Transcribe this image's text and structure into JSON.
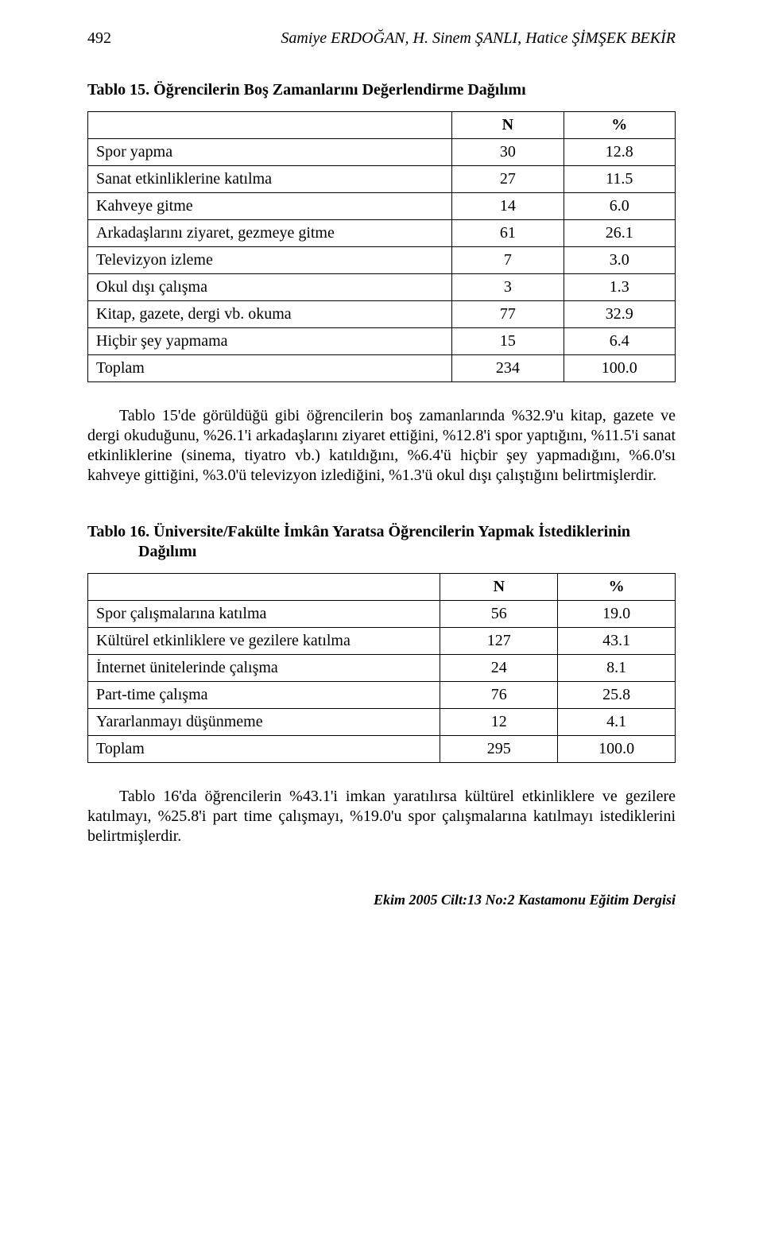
{
  "header": {
    "page_number": "492",
    "running_head": "Samiye ERDOĞAN, H. Sinem ŞANLI, Hatice ŞİMŞEK BEKİR"
  },
  "table15": {
    "caption": "Tablo 15. Öğrencilerin Boş Zamanlarını Değerlendirme Dağılımı",
    "col_headers": [
      "N",
      "%"
    ],
    "col_widths_pct": [
      62,
      19,
      19
    ],
    "border_color": "#000000",
    "font_family": "Times New Roman",
    "rows": [
      {
        "label": "Spor yapma",
        "n": "30",
        "pct": "12.8"
      },
      {
        "label": "Sanat etkinliklerine katılma",
        "n": "27",
        "pct": "11.5"
      },
      {
        "label": "Kahveye gitme",
        "n": "14",
        "pct": "6.0"
      },
      {
        "label": "Arkadaşlarını ziyaret, gezmeye gitme",
        "n": "61",
        "pct": "26.1"
      },
      {
        "label": "Televizyon izleme",
        "n": "7",
        "pct": "3.0"
      },
      {
        "label": "Okul dışı çalışma",
        "n": "3",
        "pct": "1.3"
      },
      {
        "label": "Kitap, gazete, dergi vb. okuma",
        "n": "77",
        "pct": "32.9"
      },
      {
        "label": "Hiçbir şey yapmama",
        "n": "15",
        "pct": "6.4"
      },
      {
        "label": "Toplam",
        "n": "234",
        "pct": "100.0"
      }
    ]
  },
  "para15": "Tablo 15'de görüldüğü gibi öğrencilerin boş zamanlarında %32.9'u kitap, gazete ve dergi okuduğunu, %26.1'i arkadaşlarını ziyaret ettiğini, %12.8'i spor yaptığını, %11.5'i sanat etkinliklerine (sinema, tiyatro vb.) katıldığını, %6.4'ü hiçbir şey yapmadığını, %6.0'sı kahveye gittiğini, %3.0'ü televizyon izlediğini, %1.3'ü okul dışı çalıştığını belirtmişlerdir.",
  "table16": {
    "caption_line1": "Tablo 16. Üniversite/Fakülte İmkân Yaratsa Öğrencilerin Yapmak İstediklerinin",
    "caption_line2": "Dağılımı",
    "col_headers": [
      "N",
      "%"
    ],
    "col_widths_pct": [
      60,
      20,
      20
    ],
    "border_color": "#000000",
    "font_family": "Times New Roman",
    "rows": [
      {
        "label": "Spor çalışmalarına katılma",
        "n": "56",
        "pct": "19.0"
      },
      {
        "label": "Kültürel etkinliklere ve gezilere katılma",
        "n": "127",
        "pct": "43.1"
      },
      {
        "label": "İnternet ünitelerinde çalışma",
        "n": "24",
        "pct": "8.1"
      },
      {
        "label": "Part-time çalışma",
        "n": "76",
        "pct": "25.8"
      },
      {
        "label": "Yararlanmayı düşünmeme",
        "n": "12",
        "pct": "4.1"
      },
      {
        "label": "Toplam",
        "n": "295",
        "pct": "100.0"
      }
    ]
  },
  "para16": "Tablo 16'da öğrencilerin %43.1'i imkan yaratılırsa kültürel etkinliklere ve gezilere katılmayı, %25.8'i part time çalışmayı, %19.0'u spor çalışmalarına katılmayı istediklerini belirtmişlerdir.",
  "footer": "Ekim 2005 Cilt:13 No:2   Kastamonu Eğitim Dergisi",
  "style": {
    "text_color": "#000000",
    "background_color": "#ffffff",
    "body_font_size_pt": 15,
    "caption_font_weight": "bold",
    "footer_font_style": "italic-bold"
  }
}
